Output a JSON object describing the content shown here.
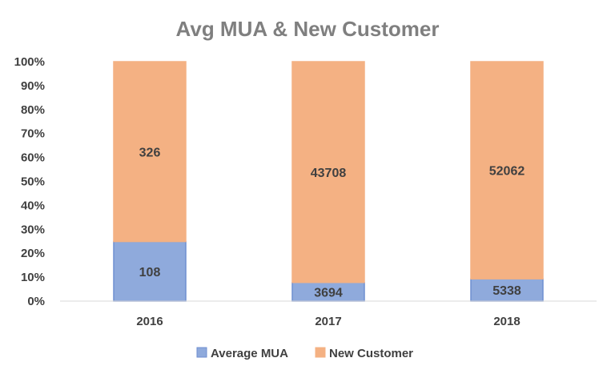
{
  "chart_data": {
    "type": "bar",
    "stacked": "percent",
    "title": "Avg MUA & New Customer",
    "categories": [
      "2016",
      "2017",
      "2018"
    ],
    "series": [
      {
        "name": "Average MUA",
        "values": [
          108,
          3694,
          5338
        ],
        "color": "#8faadc",
        "border": "#6f8fd0"
      },
      {
        "name": "New Customer",
        "values": [
          326,
          43708,
          52062
        ],
        "color": "#f4b183",
        "border": "#f4b183"
      }
    ],
    "ylim": [
      0,
      100
    ],
    "yticks": [
      "0%",
      "10%",
      "20%",
      "30%",
      "40%",
      "50%",
      "60%",
      "70%",
      "80%",
      "90%",
      "100%"
    ],
    "grid": false,
    "legend_position": "bottom"
  }
}
